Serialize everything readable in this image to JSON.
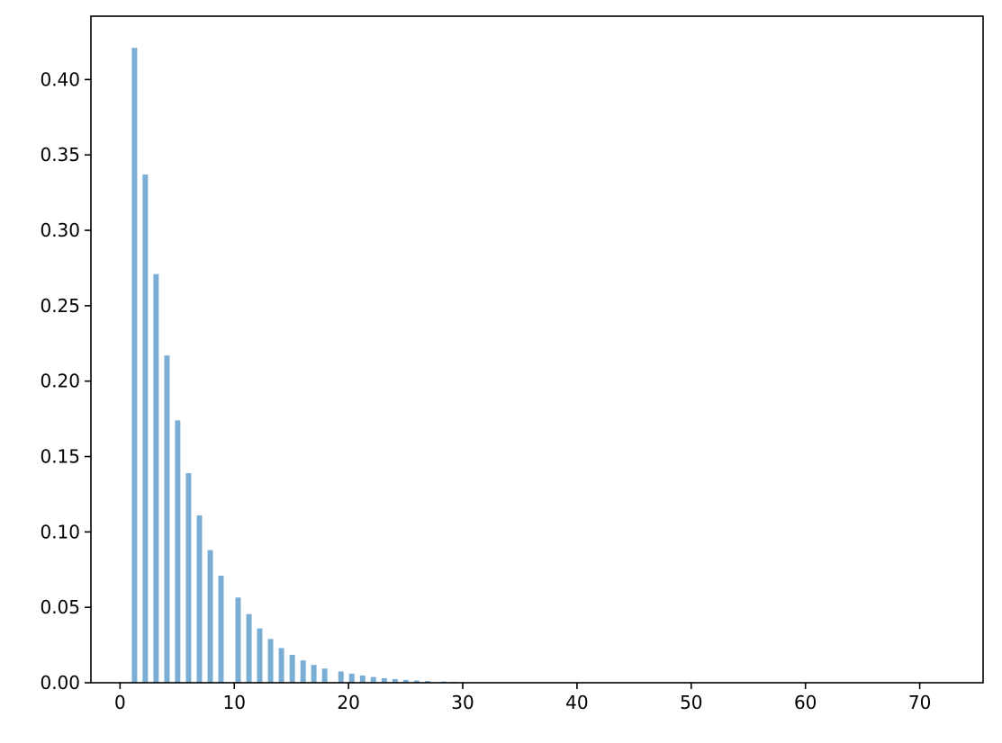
{
  "chart_data": {
    "type": "bar",
    "title": "",
    "xlabel": "",
    "ylabel": "",
    "xlim": [
      -2.55,
      75.55
    ],
    "ylim": [
      0,
      0.442
    ],
    "grid": false,
    "bar_color": "#7aaed4",
    "bar_width": 0.47,
    "xticks": [
      "0",
      "10",
      "20",
      "30",
      "40",
      "50",
      "60",
      "70"
    ],
    "yticks": [
      "0.00",
      "0.05",
      "0.10",
      "0.15",
      "0.20",
      "0.25",
      "0.30",
      "0.35",
      "0.40"
    ],
    "x": [
      1.03,
      1.97,
      2.92,
      3.87,
      4.81,
      5.76,
      6.71,
      7.66,
      8.6,
      10.1,
      11.05,
      11.99,
      12.94,
      13.89,
      14.84,
      15.79,
      16.73,
      17.68,
      19.1,
      20.05,
      21.0,
      21.94,
      22.89,
      23.84,
      24.78,
      25.73,
      26.68,
      28.1,
      29.05
    ],
    "values": [
      0.421,
      0.337,
      0.271,
      0.217,
      0.174,
      0.139,
      0.111,
      0.088,
      0.071,
      0.0565,
      0.0455,
      0.036,
      0.029,
      0.023,
      0.0185,
      0.0148,
      0.0118,
      0.0094,
      0.0075,
      0.006,
      0.0048,
      0.0038,
      0.003,
      0.0024,
      0.0019,
      0.0015,
      0.0012,
      0.0008,
      0.0006
    ]
  }
}
